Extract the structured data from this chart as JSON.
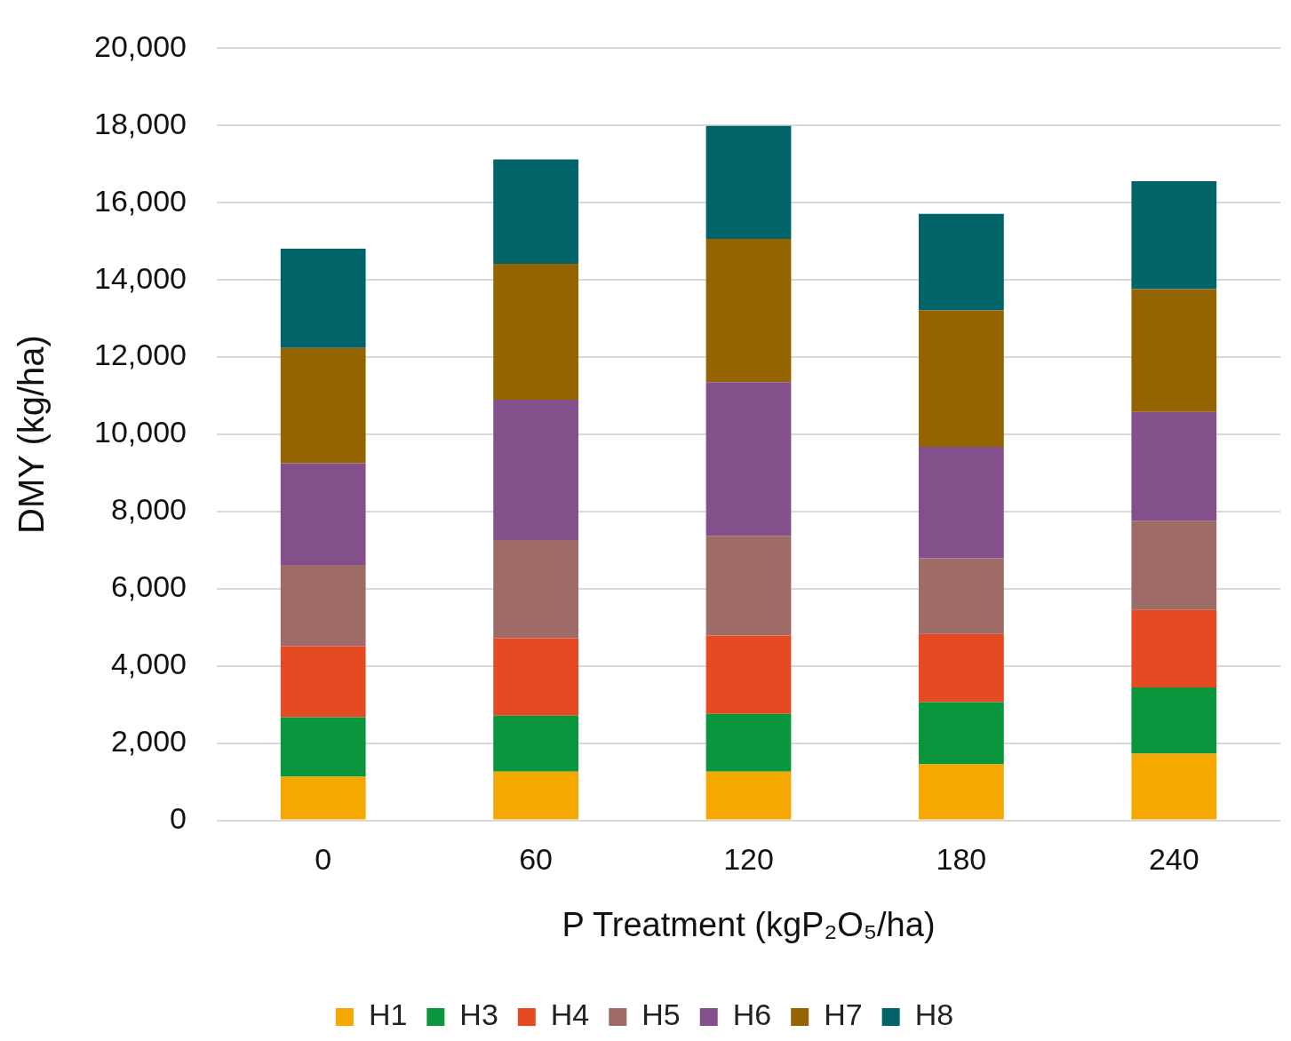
{
  "chart_data": {
    "type": "bar",
    "stacked": true,
    "xlabel": "P Treatment (kgP₂O₅/ha)",
    "ylabel": "DMY (kg/ha)",
    "categories": [
      "0",
      "60",
      "120",
      "180",
      "240"
    ],
    "series": [
      {
        "name": "H1",
        "color": "#f5a800",
        "values": [
          1130,
          1260,
          1260,
          1450,
          1730
        ]
      },
      {
        "name": "H3",
        "color": "#0a963c",
        "values": [
          1540,
          1450,
          1500,
          1610,
          1710
        ]
      },
      {
        "name": "H4",
        "color": "#e64a23",
        "values": [
          1840,
          2010,
          2030,
          1770,
          2010
        ]
      },
      {
        "name": "H5",
        "color": "#9e6b67",
        "values": [
          2110,
          2540,
          2580,
          1960,
          2310
        ]
      },
      {
        "name": "H6",
        "color": "#84508c",
        "values": [
          2630,
          3640,
          3980,
          2890,
          2820
        ]
      },
      {
        "name": "H7",
        "color": "#946400",
        "values": [
          2990,
          3520,
          3710,
          3530,
          3180
        ]
      },
      {
        "name": "H8",
        "color": "#006468",
        "values": [
          2570,
          2700,
          2930,
          2500,
          2800
        ]
      }
    ],
    "ylim": [
      0,
      20000
    ],
    "yticks": [
      0,
      {
        "value": 2000,
        "label": "2,000"
      },
      {
        "value": 4000,
        "label": "4,000"
      },
      {
        "value": 6000,
        "label": "6,000"
      },
      {
        "value": 8000,
        "label": "8,000"
      },
      {
        "value": 10000,
        "label": "10,000"
      },
      {
        "value": 12000,
        "label": "12,000"
      },
      {
        "value": 14000,
        "label": "14,000"
      },
      {
        "value": 16000,
        "label": "16,000"
      },
      {
        "value": 18000,
        "label": "18,000"
      },
      {
        "value": 20000,
        "label": "20,000"
      }
    ],
    "grid": "y",
    "legend": "bottom"
  }
}
